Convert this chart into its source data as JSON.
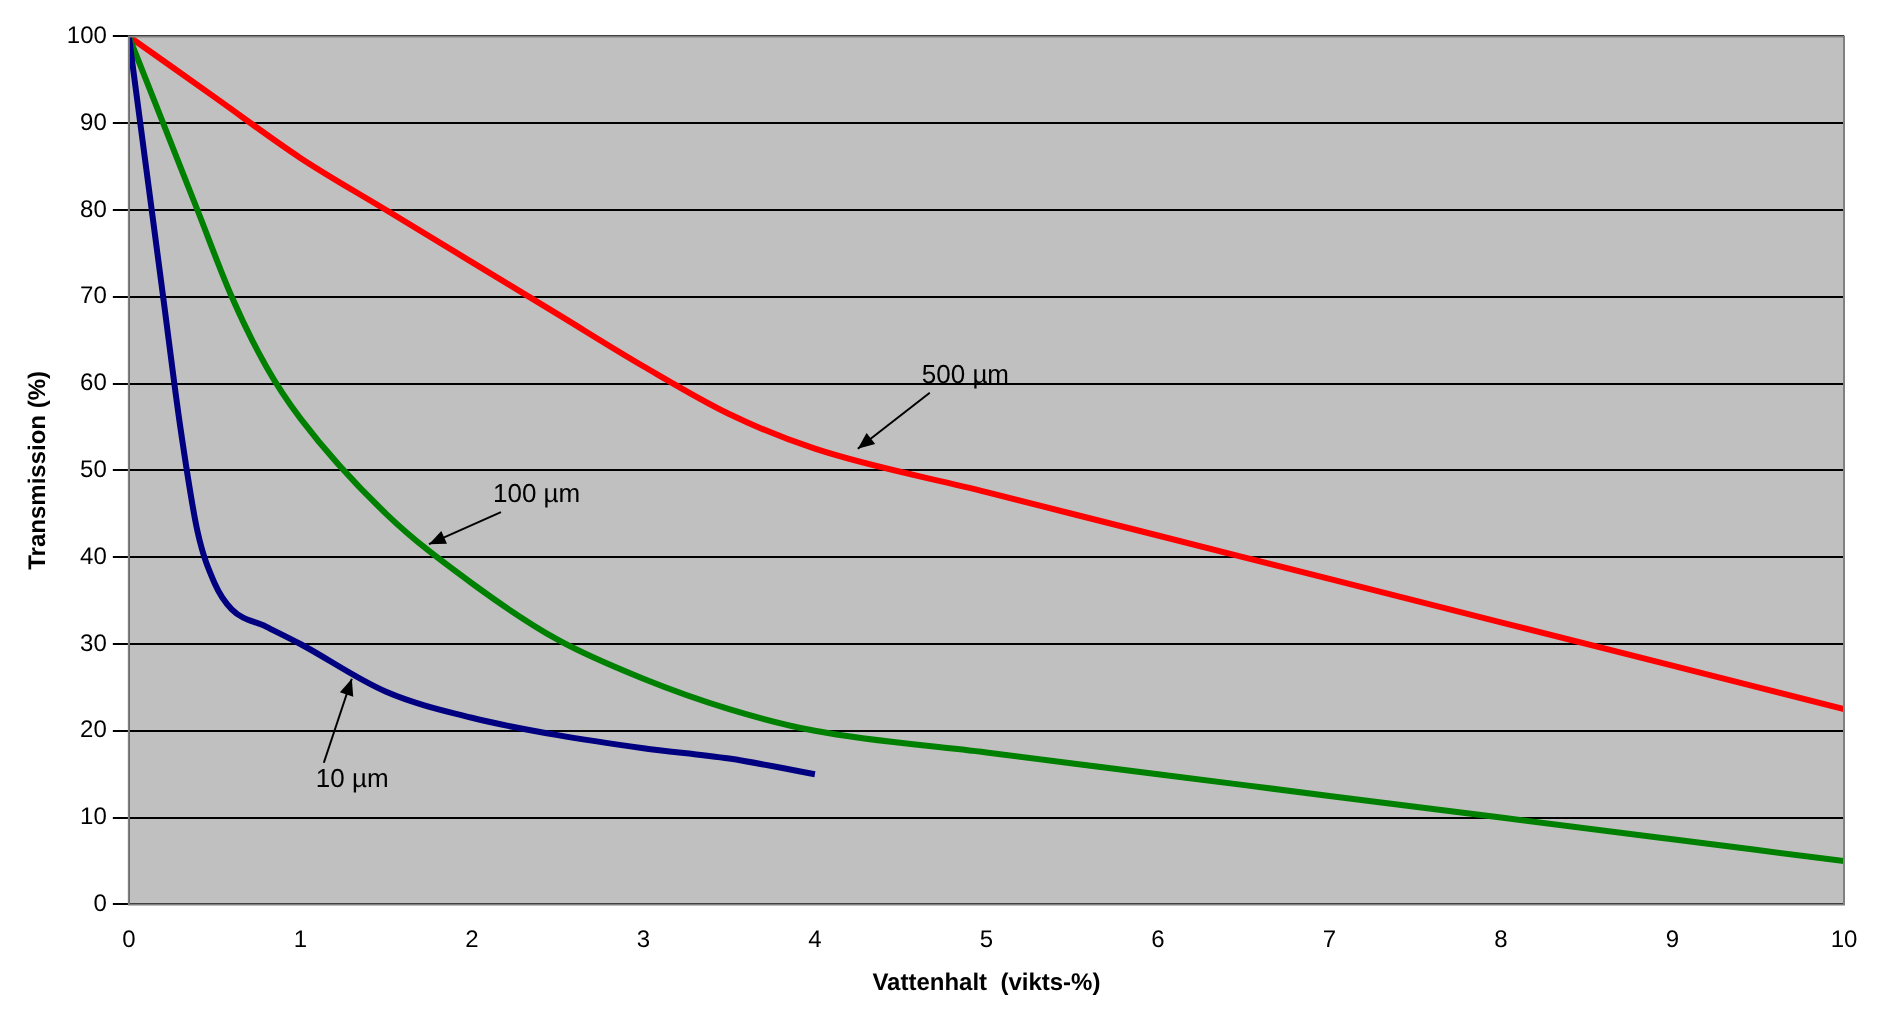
{
  "chart_data": {
    "type": "line",
    "xlabel": "Vattenhalt  (vikts-%)",
    "ylabel": "Transmission (%)",
    "xlim": [
      0,
      10
    ],
    "xticks": [
      0,
      1,
      2,
      3,
      4,
      5,
      6,
      7,
      8,
      9,
      10
    ],
    "ylim": [
      0,
      100
    ],
    "yticks": [
      0,
      10,
      20,
      30,
      40,
      50,
      60,
      70,
      80,
      90,
      100
    ],
    "grid": "y",
    "legend": false,
    "marker": "none",
    "line_style": "solid",
    "series": [
      {
        "color": "#000080",
        "x": [
          0,
          0.1,
          0.2,
          0.3,
          0.4,
          0.5,
          0.6,
          0.8,
          1,
          1.5,
          2,
          2.5,
          3,
          3.5,
          4
        ],
        "values": [
          100,
          85,
          70,
          55,
          43,
          37,
          34,
          32,
          30,
          24.5,
          21.5,
          19.5,
          18,
          16.8,
          15
        ]
      },
      {
        "color": "#008000",
        "x": [
          0,
          0.2,
          0.4,
          0.6,
          0.8,
          1,
          1.5,
          2,
          2.5,
          3,
          3.5,
          4,
          5,
          6,
          7,
          8,
          9,
          10
        ],
        "values": [
          100,
          90,
          80,
          70,
          62,
          56,
          45,
          37,
          30.5,
          26,
          22.5,
          20,
          17.5,
          15,
          12.5,
          10,
          7.5,
          5
        ]
      },
      {
        "color": "#ff0000",
        "x": [
          0,
          0.5,
          1,
          1.5,
          2,
          2.5,
          3,
          3.5,
          4,
          5,
          6,
          7,
          8,
          9,
          10
        ],
        "values": [
          100,
          93,
          86,
          80,
          74,
          68,
          62,
          56.5,
          52.5,
          47.5,
          42.5,
          37.5,
          32.5,
          27.5,
          22.5
        ]
      }
    ],
    "annotations": [
      {
        "text": "500 µm",
        "x": 4.25,
        "y": 52.5
      },
      {
        "text": "100 µm",
        "x": 1.75,
        "y": 41.5
      },
      {
        "text": "10 µm",
        "x": 1.3,
        "y": 26
      }
    ]
  }
}
